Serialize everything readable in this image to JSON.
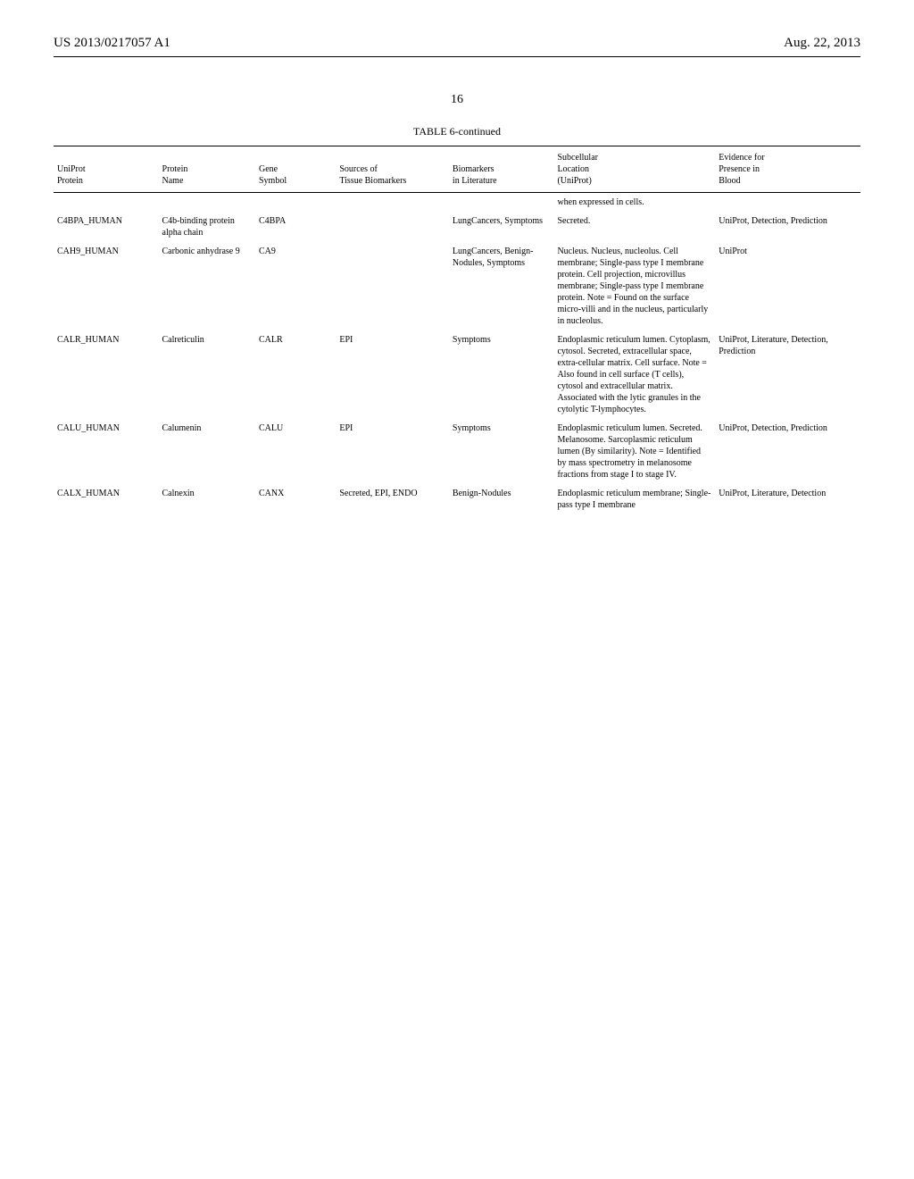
{
  "header": {
    "pub_number": "US 2013/0217057 A1",
    "pub_date": "Aug. 22, 2013"
  },
  "page_number": "16",
  "table_caption": "TABLE 6-continued",
  "columns": {
    "uniprot": "UniProt\nProtein",
    "protein": "Protein\nName",
    "gene": "Gene\nSymbol",
    "sources": "Sources of\nTissue Biomarkers",
    "biomarkers": "Biomarkers\nin Literature",
    "subcellular": "Subcellular\nLocation\n(UniProt)",
    "evidence": "Evidence for\nPresence in\nBlood"
  },
  "rows": [
    {
      "uniprot": "",
      "protein": "",
      "gene": "",
      "sources": "",
      "biomarkers": "",
      "subcellular": "when expressed in cells.",
      "evidence": ""
    },
    {
      "uniprot": "C4BPA_HUMAN",
      "protein": "C4b-binding protein alpha chain",
      "gene": "C4BPA",
      "sources": "",
      "biomarkers": "LungCancers, Symptoms",
      "subcellular": "Secreted.",
      "evidence": "UniProt, Detection, Prediction"
    },
    {
      "uniprot": "CAH9_HUMAN",
      "protein": "Carbonic anhydrase 9",
      "gene": "CA9",
      "sources": "",
      "biomarkers": "LungCancers, Benign-Nodules, Symptoms",
      "subcellular": "Nucleus. Nucleus, nucleolus. Cell membrane; Single-pass type I membrane protein. Cell projection, microvillus membrane; Single-pass type I membrane protein. Note = Found on the surface micro-villi and in the nucleus, particularly in nucleolus.",
      "evidence": "UniProt"
    },
    {
      "uniprot": "CALR_HUMAN",
      "protein": "Calreticulin",
      "gene": "CALR",
      "sources": "EPI",
      "biomarkers": "Symptoms",
      "subcellular": "Endoplasmic reticulum lumen. Cytoplasm, cytosol. Secreted, extracellular space, extra-cellular matrix. Cell surface. Note = Also found in cell surface (T cells), cytosol and extracellular matrix. Associated with the lytic granules in the cytolytic T-lymphocytes.",
      "evidence": "UniProt, Literature, Detection, Prediction"
    },
    {
      "uniprot": "CALU_HUMAN",
      "protein": "Calumenin",
      "gene": "CALU",
      "sources": "EPI",
      "biomarkers": "Symptoms",
      "subcellular": "Endoplasmic reticulum lumen. Secreted. Melanosome. Sarcoplasmic reticulum lumen (By similarity). Note = Identified by mass spectrometry in melanosome fractions from stage I to stage IV.",
      "evidence": "UniProt, Detection, Prediction"
    },
    {
      "uniprot": "CALX_HUMAN",
      "protein": "Calnexin",
      "gene": "CANX",
      "sources": "Secreted, EPI, ENDO",
      "biomarkers": "Benign-Nodules",
      "subcellular": "Endoplasmic reticulum membrane; Single-pass type I membrane",
      "evidence": "UniProt, Literature, Detection"
    }
  ]
}
